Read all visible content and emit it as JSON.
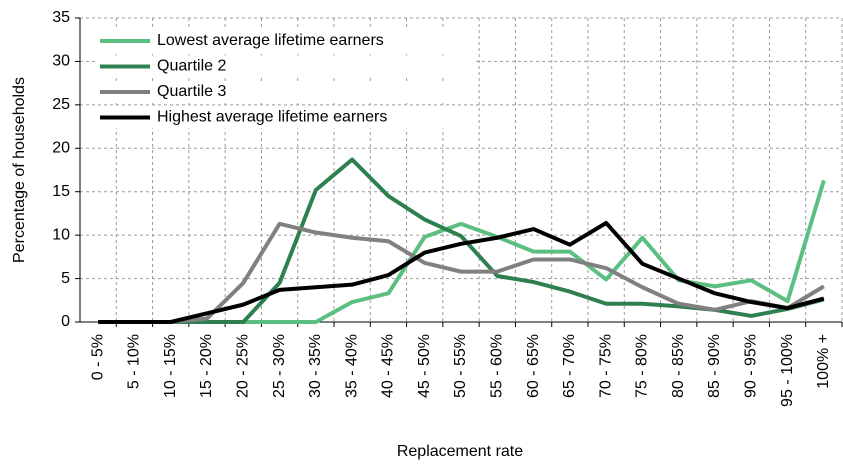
{
  "chart_data": {
    "type": "line",
    "y_label": "Percentage of households",
    "x_label": "Replacement rate",
    "categories": [
      "0 - 5%",
      "5 - 10%",
      "10 - 15%",
      "15 - 20%",
      "20 - 25%",
      "25 - 30%",
      "30 - 35%",
      "35 - 40%",
      "40 - 45%",
      "45 - 50%",
      "50 - 55%",
      "55 - 60%",
      "60 - 65%",
      "65 - 70%",
      "70 - 75%",
      "75 - 80%",
      "80 - 85%",
      "85 - 90%",
      "90 - 95%",
      "95 - 100%",
      "100% +"
    ],
    "series": [
      {
        "name": "Lowest average lifetime earners",
        "color": "#5cbf82",
        "values": [
          0,
          0,
          0,
          0,
          0,
          0,
          0,
          2.3,
          3.3,
          9.8,
          11.3,
          9.8,
          8.1,
          8.1,
          4.9,
          9.7,
          4.8,
          4.1,
          4.8,
          2.4,
          16.3
        ]
      },
      {
        "name": "Quartile 2",
        "color": "#2f8050",
        "values": [
          0,
          0,
          0,
          0,
          0,
          4.5,
          15.2,
          18.7,
          14.5,
          11.8,
          9.9,
          5.3,
          4.6,
          3.5,
          2.1,
          2.1,
          1.8,
          1.4,
          0.7,
          1.5,
          2.6
        ]
      },
      {
        "name": "Quartile 3",
        "color": "#808080",
        "values": [
          0,
          0,
          0,
          0.4,
          4.5,
          11.3,
          10.3,
          9.7,
          9.3,
          6.8,
          5.8,
          5.8,
          7.2,
          7.2,
          6.2,
          4.0,
          2.1,
          1.4,
          2.4,
          1.6,
          4.1
        ]
      },
      {
        "name": "Highest average lifetime earners",
        "color": "#000000",
        "values": [
          0,
          0,
          0,
          1.0,
          2.0,
          3.7,
          4.0,
          4.3,
          5.4,
          8.0,
          9.0,
          9.7,
          10.7,
          8.9,
          11.4,
          6.7,
          5.0,
          3.3,
          2.3,
          1.6,
          2.7
        ]
      }
    ],
    "ylim": [
      0,
      35
    ],
    "yticks": [
      0,
      5,
      10,
      15,
      20,
      25,
      30,
      35
    ],
    "grid": true,
    "legend": "top-left"
  }
}
